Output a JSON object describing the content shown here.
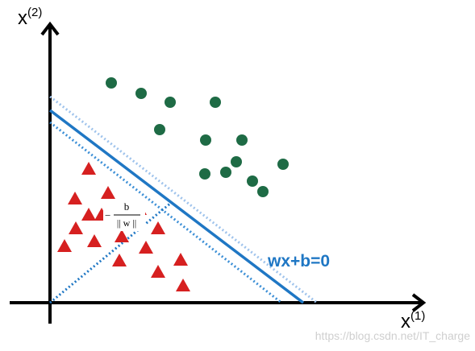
{
  "axes": {
    "y_label_base": "x",
    "y_label_sup": "(2)",
    "x_label_base": "x",
    "x_label_sup": "(1)"
  },
  "hyperplane": {
    "label": "wx+b=0",
    "color": "#1f77c4",
    "margin_color": "#9fc3ec",
    "support_color": "#3c8fd6"
  },
  "fraction": {
    "sign": "−",
    "numerator": "b",
    "denominator": "|| w ||"
  },
  "classes": {
    "positive_color": "#1e6b45",
    "negative_color": "#d62020"
  },
  "watermark": "https://blog.csdn.net/IT_charge"
}
